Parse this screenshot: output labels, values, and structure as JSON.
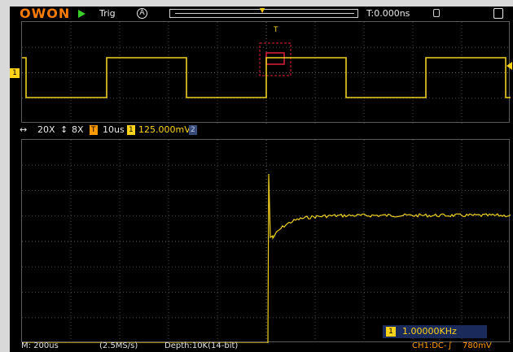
{
  "brand": {
    "logo": "OWON",
    "brand_color": "#ff7a00"
  },
  "status": {
    "run_state_icon": "play-icon",
    "trigger_state": "Trig",
    "trigger_mode": "A",
    "trigger_position": "T:0.000ns"
  },
  "zoom_info": {
    "horizontal_zoom": "20X",
    "vertical_zoom": "8X",
    "timebase": "10us",
    "channel_badge": "1",
    "ch1_scale": "125.000mV",
    "ch2_badge": "2",
    "ch2_scale": "",
    "t_badge": "T"
  },
  "bottom": {
    "main_timebase": "M: 200us",
    "sample_rate": "(2.5MS/s)",
    "depth": "Depth:10K(14-bit)",
    "ch1_coupling": "CH1:DC-",
    "trigger_level": "780mV"
  },
  "measurement": {
    "badge": "1",
    "frequency": "1.00000KHz"
  },
  "overview": {
    "channel_marker": "1",
    "trigger_marker": "T"
  },
  "colors": {
    "ch1": "#f0d020",
    "ch1_label": "#ffd31a",
    "grid": "#4a4a4a",
    "zoom_window": "#e0203a",
    "run": "#39d02a",
    "orange_text": "#ff9a00"
  }
}
